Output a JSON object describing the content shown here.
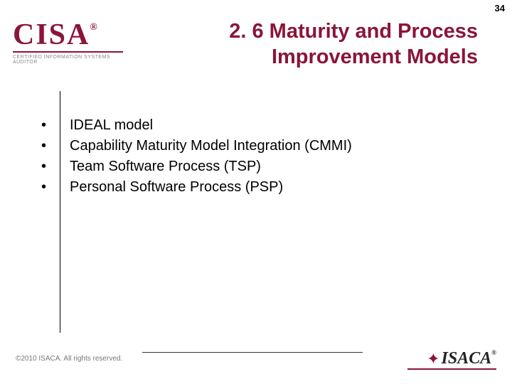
{
  "page_number": "34",
  "logo_top": {
    "name": "CISA",
    "reg": "®",
    "subtitle": "CERTIFIED INFORMATION SYSTEMS AUDITOR",
    "color": "#8a1538"
  },
  "title": {
    "line1": "2. 6 Maturity and Process",
    "line2": "Improvement Models",
    "color": "#8a1538"
  },
  "bullets": [
    "IDEAL model",
    "Capability Maturity Model Integration (CMMI)",
    "Team Software Process (TSP)",
    "Personal Software Process (PSP)"
  ],
  "footer": {
    "copyright": "©2010 ISACA.  All rights reserved."
  },
  "logo_bottom": {
    "name": "ISACA",
    "reg": "®",
    "color": "#8a1538"
  }
}
